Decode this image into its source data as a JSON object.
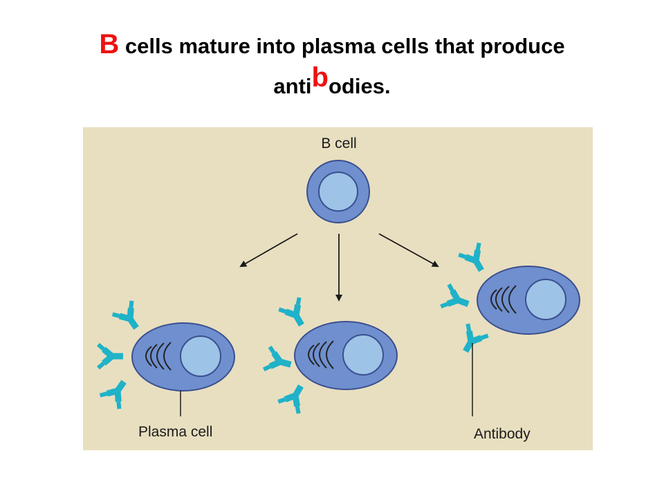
{
  "title": {
    "line1_red": "B",
    "line1_rest": " cells mature into plasma cells that produce",
    "line2_before": "anti",
    "line2_red": "b",
    "line2_after": "odies."
  },
  "diagram": {
    "labels": {
      "b_cell": "B cell",
      "plasma_cell": "Plasma cell",
      "antibody": "Antibody"
    },
    "colors": {
      "background": "#e8dfc0",
      "cell_body": "#6f8fce",
      "cell_outline": "#3a4f8f",
      "nucleus": "#9dc3e6",
      "antibody": "#1fb2c8",
      "red_text": "#ee1111"
    }
  }
}
